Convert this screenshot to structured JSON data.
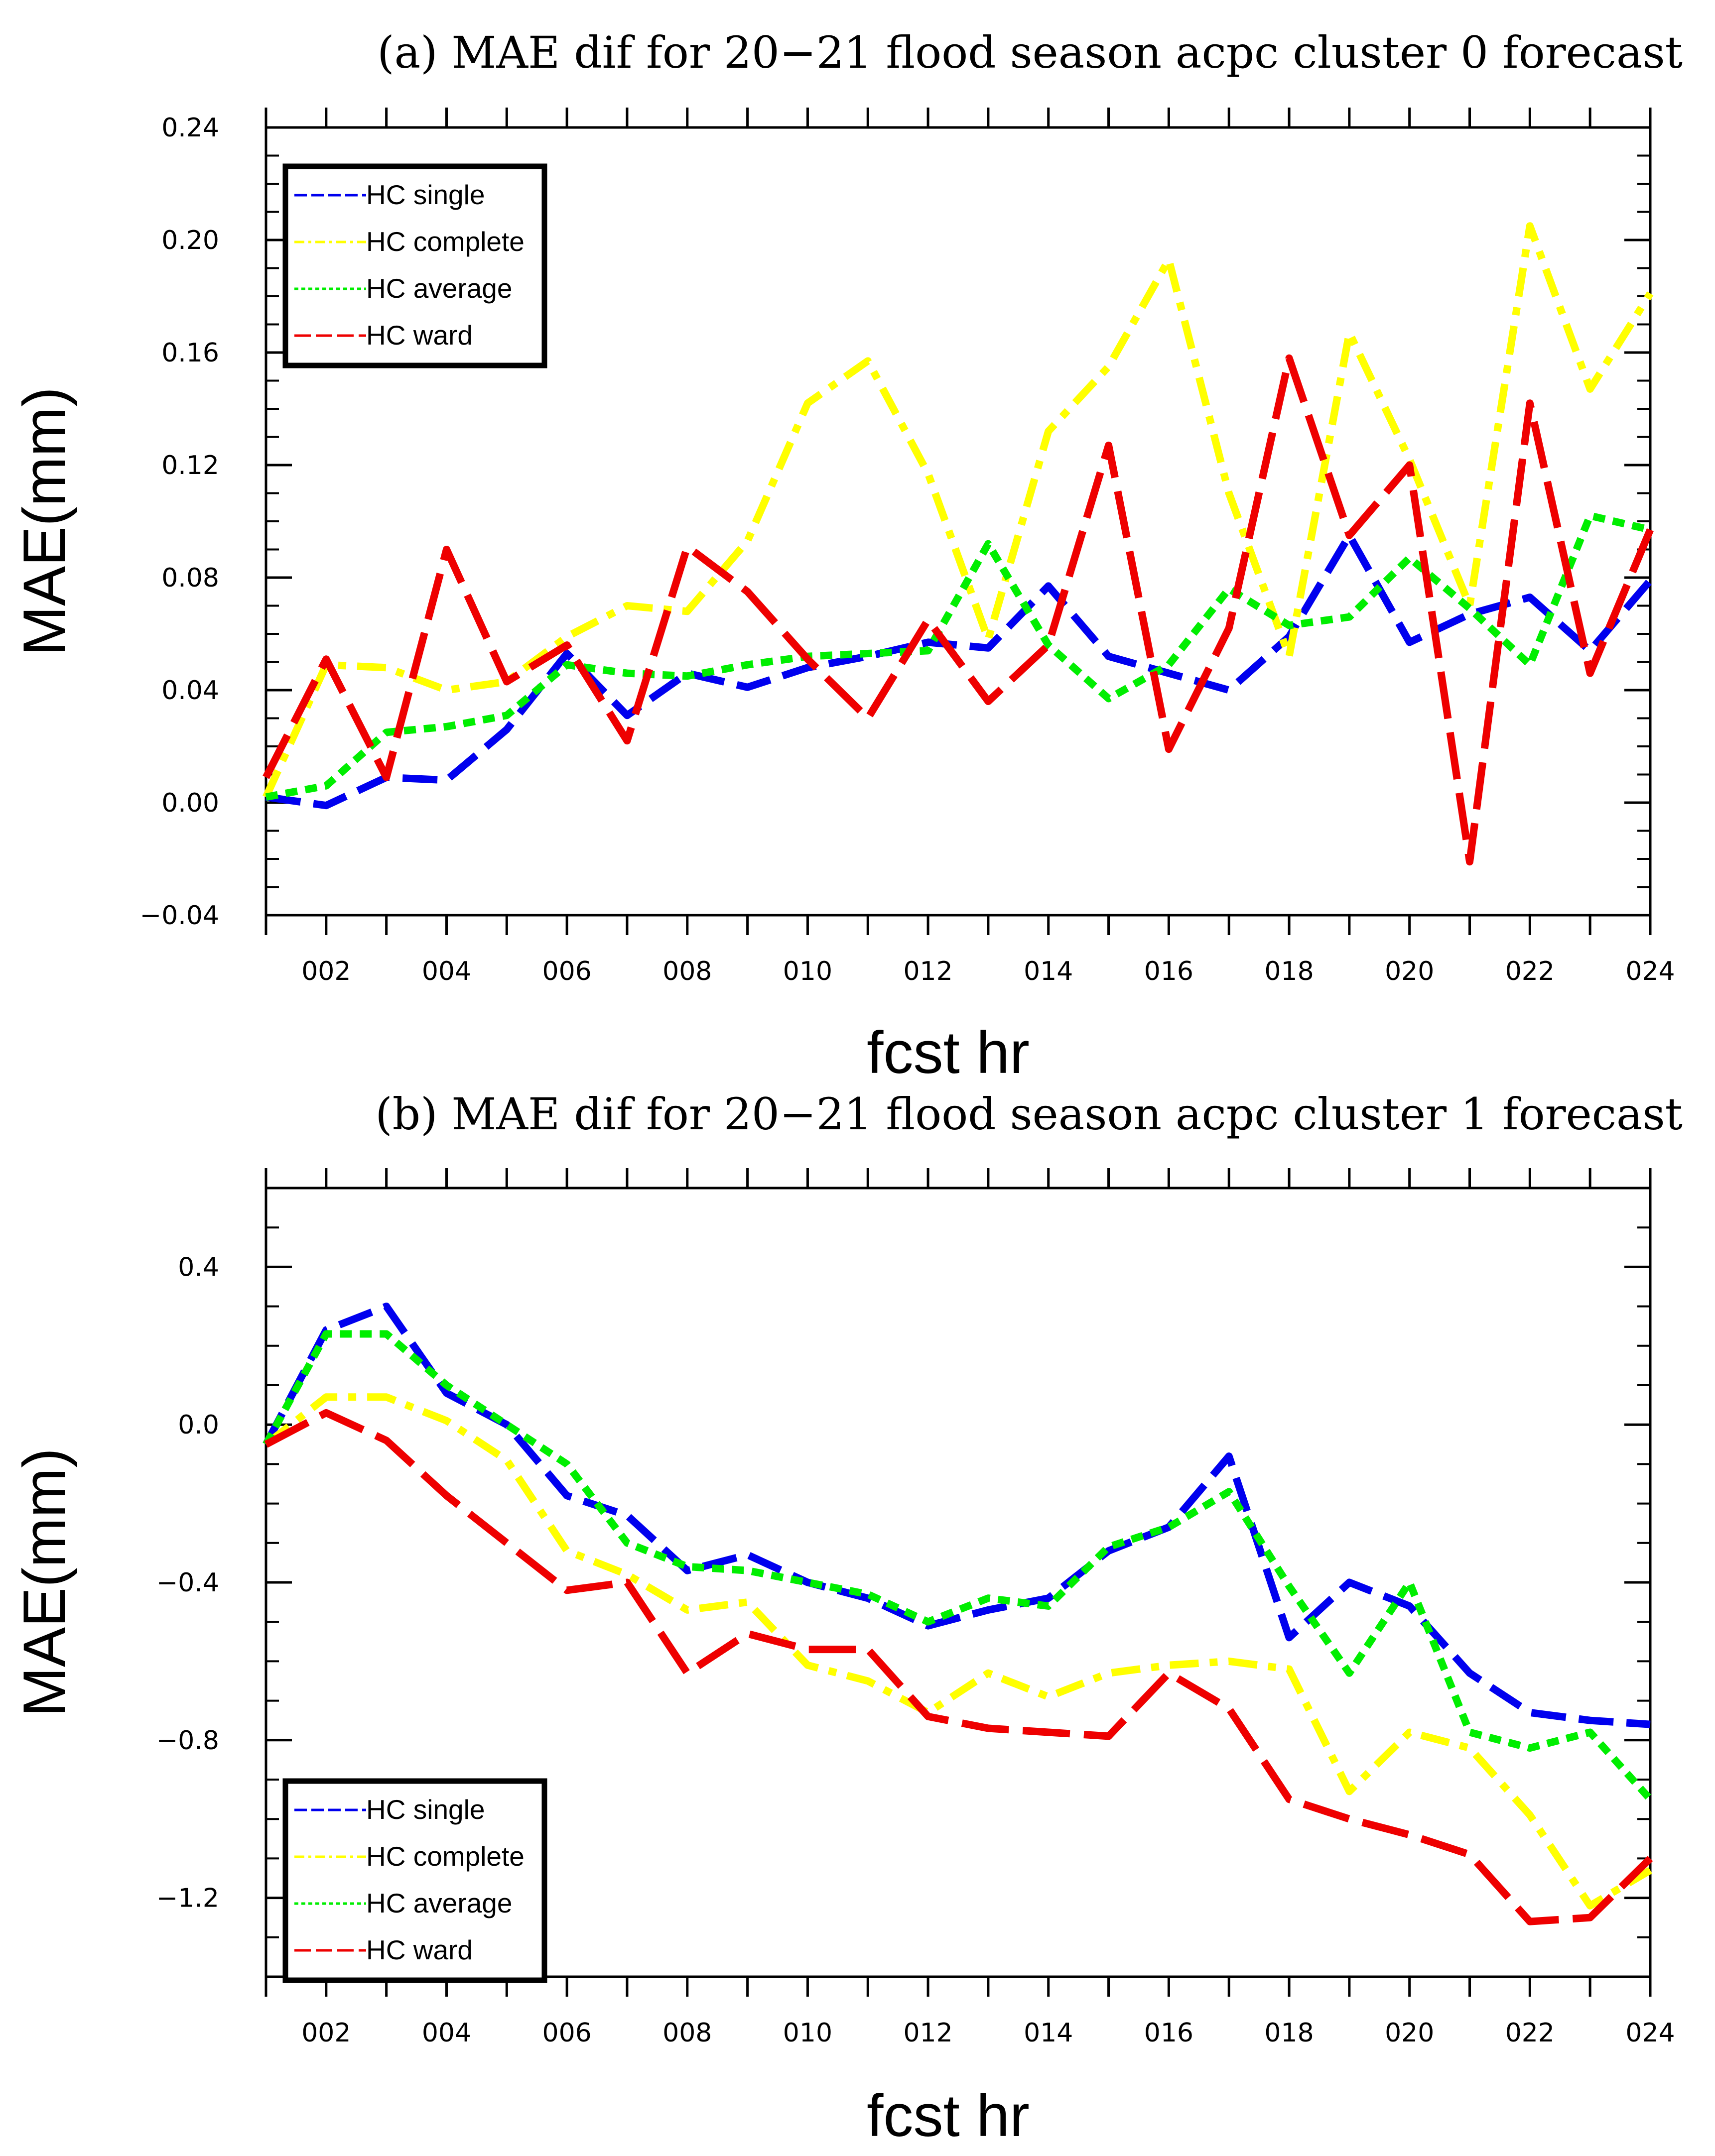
{
  "chart_data": [
    {
      "type": "line",
      "title": "(a) MAE dif for 20−21 flood season acpc cluster 0 forecast",
      "xlabel": "fcst hr",
      "ylabel": "MAE(mm)",
      "x": [
        1,
        2,
        3,
        4,
        5,
        6,
        7,
        8,
        9,
        10,
        11,
        12,
        13,
        14,
        15,
        16,
        17,
        18,
        19,
        20,
        21,
        22,
        23,
        24
      ],
      "xlim": [
        1,
        24
      ],
      "xticks": [
        2,
        4,
        6,
        8,
        10,
        12,
        14,
        16,
        18,
        20,
        22,
        24
      ],
      "xtick_labels": [
        "002",
        "004",
        "006",
        "008",
        "010",
        "012",
        "014",
        "016",
        "018",
        "020",
        "022",
        "024"
      ],
      "ylim": [
        -0.04,
        0.24
      ],
      "yticks": [
        -0.04,
        0.0,
        0.04,
        0.08,
        0.12,
        0.16,
        0.2,
        0.24
      ],
      "ytick_labels": [
        "−0.04",
        "0.00",
        "0.04",
        "0.08",
        "0.12",
        "0.16",
        "0.20",
        "0.24"
      ],
      "legend_position": "top-left",
      "series": [
        {
          "name": "HC single",
          "color": "#0000ee",
          "dash": "dash",
          "values": [
            0.002,
            -0.001,
            0.009,
            0.008,
            0.026,
            0.053,
            0.031,
            0.046,
            0.041,
            0.048,
            0.052,
            0.057,
            0.055,
            0.077,
            0.052,
            0.046,
            0.04,
            0.059,
            0.095,
            0.057,
            0.067,
            0.073,
            0.054,
            0.079
          ]
        },
        {
          "name": "HC complete",
          "color": "#ffff00",
          "dash": "dashdot",
          "values": [
            0.002,
            0.049,
            0.048,
            0.04,
            0.043,
            0.059,
            0.07,
            0.068,
            0.093,
            0.142,
            0.157,
            0.117,
            0.058,
            0.132,
            0.155,
            0.193,
            0.11,
            0.052,
            0.167,
            0.122,
            0.07,
            0.205,
            0.147,
            0.181
          ]
        },
        {
          "name": "HC average",
          "color": "#00ee00",
          "dash": "dot",
          "values": [
            0.002,
            0.006,
            0.025,
            0.027,
            0.031,
            0.049,
            0.046,
            0.045,
            0.049,
            0.052,
            0.053,
            0.054,
            0.092,
            0.056,
            0.037,
            0.049,
            0.076,
            0.063,
            0.066,
            0.087,
            0.069,
            0.049,
            0.102,
            0.097
          ]
        },
        {
          "name": "HC ward",
          "color": "#ee0000",
          "dash": "longdash",
          "values": [
            0.009,
            0.051,
            0.009,
            0.09,
            0.043,
            0.056,
            0.022,
            0.091,
            0.075,
            0.051,
            0.03,
            0.065,
            0.036,
            0.056,
            0.127,
            0.019,
            0.062,
            0.158,
            0.095,
            0.12,
            -0.021,
            0.142,
            0.046,
            0.097
          ]
        }
      ]
    },
    {
      "type": "line",
      "title": "(b) MAE dif for 20−21 flood season acpc cluster 1 forecast",
      "xlabel": "fcst hr",
      "ylabel": "MAE(mm)",
      "x": [
        1,
        2,
        3,
        4,
        5,
        6,
        7,
        8,
        9,
        10,
        11,
        12,
        13,
        14,
        15,
        16,
        17,
        18,
        19,
        20,
        21,
        22,
        23,
        24
      ],
      "xlim": [
        1,
        24
      ],
      "xticks": [
        2,
        4,
        6,
        8,
        10,
        12,
        14,
        16,
        18,
        20,
        22,
        24
      ],
      "xtick_labels": [
        "002",
        "004",
        "006",
        "008",
        "010",
        "012",
        "014",
        "016",
        "018",
        "020",
        "022",
        "024"
      ],
      "ylim": [
        -1.4,
        0.6
      ],
      "yticks": [
        -1.2,
        -0.8,
        -0.4,
        0.0,
        0.4
      ],
      "ytick_labels": [
        "−1.2",
        "−0.8",
        "−0.4",
        "0.0",
        "0.4"
      ],
      "legend_position": "bottom-left",
      "series": [
        {
          "name": "HC single",
          "color": "#0000ee",
          "dash": "dash",
          "values": [
            -0.05,
            0.24,
            0.3,
            0.08,
            0.0,
            -0.18,
            -0.23,
            -0.37,
            -0.33,
            -0.4,
            -0.44,
            -0.51,
            -0.47,
            -0.44,
            -0.32,
            -0.26,
            -0.08,
            -0.54,
            -0.4,
            -0.46,
            -0.63,
            -0.73,
            -0.75,
            -0.76
          ]
        },
        {
          "name": "HC complete",
          "color": "#ffff00",
          "dash": "dashdot",
          "values": [
            -0.05,
            0.07,
            0.07,
            0.01,
            -0.09,
            -0.32,
            -0.38,
            -0.47,
            -0.45,
            -0.61,
            -0.65,
            -0.73,
            -0.63,
            -0.69,
            -0.63,
            -0.61,
            -0.6,
            -0.62,
            -0.93,
            -0.78,
            -0.82,
            -0.99,
            -1.22,
            -1.13
          ]
        },
        {
          "name": "HC average",
          "color": "#00ee00",
          "dash": "dot",
          "values": [
            -0.05,
            0.23,
            0.23,
            0.1,
            0.0,
            -0.1,
            -0.3,
            -0.36,
            -0.37,
            -0.4,
            -0.43,
            -0.5,
            -0.44,
            -0.46,
            -0.31,
            -0.26,
            -0.17,
            -0.41,
            -0.63,
            -0.4,
            -0.78,
            -0.82,
            -0.78,
            -0.95
          ]
        },
        {
          "name": "HC ward",
          "color": "#ee0000",
          "dash": "longdash",
          "values": [
            -0.05,
            0.03,
            -0.04,
            -0.18,
            -0.3,
            -0.42,
            -0.4,
            -0.63,
            -0.53,
            -0.57,
            -0.57,
            -0.74,
            -0.77,
            -0.78,
            -0.79,
            -0.63,
            -0.72,
            -0.95,
            -1.0,
            -1.04,
            -1.09,
            -1.26,
            -1.25,
            -1.1
          ]
        }
      ]
    }
  ]
}
